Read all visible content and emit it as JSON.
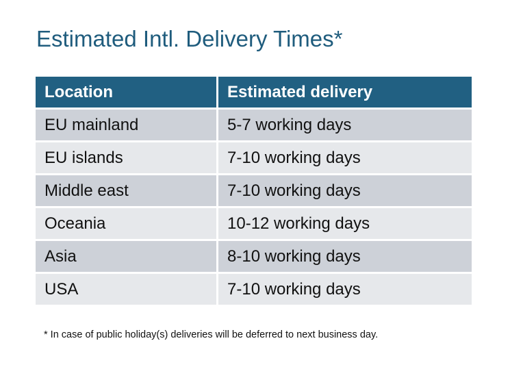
{
  "title": "Estimated Intl. Delivery Times*",
  "table": {
    "headers": [
      "Location",
      "Estimated delivery"
    ],
    "rows": [
      [
        "EU mainland",
        "5-7 working days"
      ],
      [
        "EU islands",
        "7-10 working days"
      ],
      [
        "Middle east",
        "7-10 working days"
      ],
      [
        "Oceania",
        "10-12 working days"
      ],
      [
        "Asia",
        "8-10 working days"
      ],
      [
        "USA",
        "7-10 working days"
      ]
    ]
  },
  "footnote": "* In case of public holiday(s) deliveries will be deferred to next business day.",
  "colors": {
    "header": "#216082",
    "title": "#1f5c7d",
    "row_dark": "#cdd1d8",
    "row_light": "#e6e8eb"
  }
}
